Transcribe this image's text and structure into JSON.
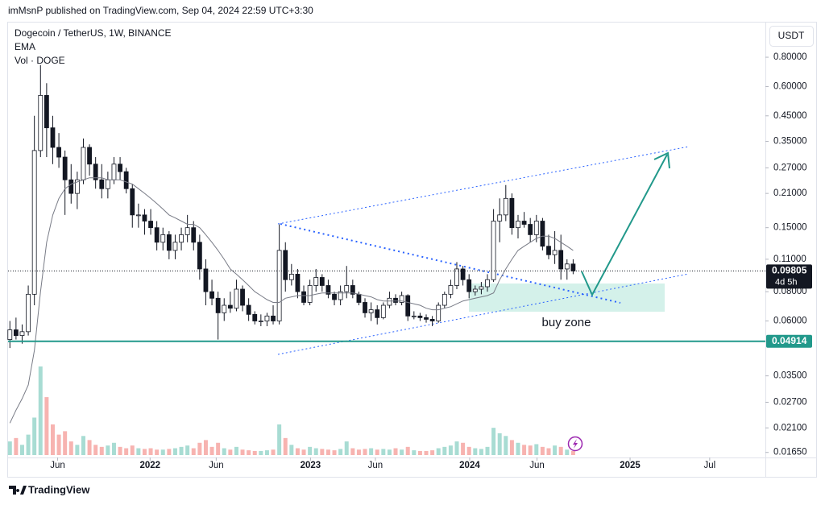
{
  "header": "imMsnP published on TradingView.com, Sep 04, 2024 22:59 UTC+3:30",
  "footer": "TradingView",
  "chart_data": {
    "type": "candlestick",
    "title": "Dogecoin / TetherUS, 1W, BINANCE",
    "currency": "USDT",
    "log_scale": true,
    "grid": false,
    "up_color": "#ffffff",
    "down_color": "#131722",
    "candles": [
      [
        0.05,
        0.06,
        0.046,
        0.055
      ],
      [
        0.055,
        0.062,
        0.05,
        0.052
      ],
      [
        0.052,
        0.058,
        0.048,
        0.054
      ],
      [
        0.054,
        0.085,
        0.052,
        0.078
      ],
      [
        0.078,
        0.45,
        0.07,
        0.32
      ],
      [
        0.32,
        0.74,
        0.3,
        0.55
      ],
      [
        0.55,
        0.62,
        0.3,
        0.4
      ],
      [
        0.4,
        0.45,
        0.28,
        0.33
      ],
      [
        0.33,
        0.38,
        0.27,
        0.3
      ],
      [
        0.3,
        0.32,
        0.17,
        0.24
      ],
      [
        0.24,
        0.28,
        0.19,
        0.21
      ],
      [
        0.21,
        0.26,
        0.18,
        0.24
      ],
      [
        0.24,
        0.36,
        0.23,
        0.33
      ],
      [
        0.33,
        0.34,
        0.25,
        0.28
      ],
      [
        0.28,
        0.3,
        0.22,
        0.24
      ],
      [
        0.24,
        0.28,
        0.2,
        0.22
      ],
      [
        0.22,
        0.26,
        0.2,
        0.24
      ],
      [
        0.24,
        0.3,
        0.23,
        0.28
      ],
      [
        0.28,
        0.3,
        0.24,
        0.26
      ],
      [
        0.26,
        0.27,
        0.21,
        0.22
      ],
      [
        0.22,
        0.23,
        0.15,
        0.17
      ],
      [
        0.17,
        0.19,
        0.15,
        0.17
      ],
      [
        0.17,
        0.18,
        0.14,
        0.16
      ],
      [
        0.16,
        0.18,
        0.14,
        0.15
      ],
      [
        0.15,
        0.16,
        0.12,
        0.13
      ],
      [
        0.13,
        0.15,
        0.12,
        0.14
      ],
      [
        0.14,
        0.145,
        0.11,
        0.12
      ],
      [
        0.12,
        0.14,
        0.11,
        0.13
      ],
      [
        0.13,
        0.15,
        0.12,
        0.14
      ],
      [
        0.14,
        0.17,
        0.13,
        0.15
      ],
      [
        0.15,
        0.16,
        0.12,
        0.13
      ],
      [
        0.13,
        0.14,
        0.09,
        0.1
      ],
      [
        0.1,
        0.11,
        0.07,
        0.08
      ],
      [
        0.08,
        0.09,
        0.07,
        0.075
      ],
      [
        0.075,
        0.08,
        0.05,
        0.065
      ],
      [
        0.065,
        0.075,
        0.06,
        0.07
      ],
      [
        0.07,
        0.08,
        0.065,
        0.068
      ],
      [
        0.068,
        0.09,
        0.066,
        0.082
      ],
      [
        0.082,
        0.085,
        0.066,
        0.07
      ],
      [
        0.07,
        0.075,
        0.06,
        0.064
      ],
      [
        0.064,
        0.066,
        0.058,
        0.06
      ],
      [
        0.06,
        0.064,
        0.057,
        0.06
      ],
      [
        0.06,
        0.065,
        0.057,
        0.063
      ],
      [
        0.063,
        0.07,
        0.058,
        0.06
      ],
      [
        0.06,
        0.155,
        0.058,
        0.12
      ],
      [
        0.12,
        0.13,
        0.08,
        0.09
      ],
      [
        0.09,
        0.105,
        0.085,
        0.095
      ],
      [
        0.095,
        0.1,
        0.075,
        0.08
      ],
      [
        0.08,
        0.085,
        0.07,
        0.072
      ],
      [
        0.072,
        0.09,
        0.07,
        0.085
      ],
      [
        0.085,
        0.1,
        0.08,
        0.092
      ],
      [
        0.092,
        0.095,
        0.08,
        0.085
      ],
      [
        0.085,
        0.09,
        0.075,
        0.078
      ],
      [
        0.078,
        0.08,
        0.07,
        0.074
      ],
      [
        0.074,
        0.085,
        0.07,
        0.08
      ],
      [
        0.08,
        0.103,
        0.075,
        0.085
      ],
      [
        0.085,
        0.09,
        0.075,
        0.078
      ],
      [
        0.078,
        0.08,
        0.07,
        0.072
      ],
      [
        0.072,
        0.075,
        0.062,
        0.065
      ],
      [
        0.065,
        0.072,
        0.06,
        0.067
      ],
      [
        0.067,
        0.07,
        0.058,
        0.062
      ],
      [
        0.062,
        0.072,
        0.061,
        0.07
      ],
      [
        0.07,
        0.08,
        0.068,
        0.075
      ],
      [
        0.075,
        0.078,
        0.07,
        0.072
      ],
      [
        0.072,
        0.08,
        0.07,
        0.077
      ],
      [
        0.077,
        0.078,
        0.06,
        0.063
      ],
      [
        0.063,
        0.066,
        0.061,
        0.063
      ],
      [
        0.063,
        0.065,
        0.06,
        0.062
      ],
      [
        0.062,
        0.064,
        0.059,
        0.061
      ],
      [
        0.061,
        0.063,
        0.057,
        0.06
      ],
      [
        0.06,
        0.072,
        0.059,
        0.07
      ],
      [
        0.07,
        0.08,
        0.068,
        0.078
      ],
      [
        0.078,
        0.09,
        0.075,
        0.085
      ],
      [
        0.085,
        0.107,
        0.082,
        0.1
      ],
      [
        0.1,
        0.103,
        0.085,
        0.09
      ],
      [
        0.09,
        0.095,
        0.075,
        0.08
      ],
      [
        0.08,
        0.085,
        0.077,
        0.082
      ],
      [
        0.082,
        0.088,
        0.078,
        0.084
      ],
      [
        0.084,
        0.095,
        0.08,
        0.09
      ],
      [
        0.09,
        0.18,
        0.088,
        0.16
      ],
      [
        0.16,
        0.2,
        0.13,
        0.17
      ],
      [
        0.17,
        0.228,
        0.16,
        0.2
      ],
      [
        0.2,
        0.21,
        0.14,
        0.15
      ],
      [
        0.15,
        0.17,
        0.135,
        0.16
      ],
      [
        0.16,
        0.175,
        0.15,
        0.155
      ],
      [
        0.155,
        0.165,
        0.13,
        0.14
      ],
      [
        0.14,
        0.17,
        0.13,
        0.16
      ],
      [
        0.16,
        0.165,
        0.12,
        0.125
      ],
      [
        0.125,
        0.14,
        0.11,
        0.115
      ],
      [
        0.115,
        0.145,
        0.105,
        0.12
      ],
      [
        0.12,
        0.14,
        0.09,
        0.1
      ],
      [
        0.1,
        0.11,
        0.09,
        0.105
      ],
      [
        0.105,
        0.11,
        0.095,
        0.09805
      ]
    ],
    "ema": {
      "name": "EMA",
      "color": "#787b86",
      "values": [
        0.022,
        0.025,
        0.028,
        0.032,
        0.045,
        0.08,
        0.13,
        0.17,
        0.2,
        0.22,
        0.23,
        0.235,
        0.24,
        0.245,
        0.245,
        0.245,
        0.24,
        0.24,
        0.24,
        0.235,
        0.23,
        0.22,
        0.21,
        0.2,
        0.19,
        0.18,
        0.17,
        0.165,
        0.16,
        0.155,
        0.155,
        0.15,
        0.14,
        0.13,
        0.12,
        0.11,
        0.1,
        0.095,
        0.09,
        0.085,
        0.08,
        0.077,
        0.074,
        0.072,
        0.072,
        0.075,
        0.076,
        0.077,
        0.077,
        0.077,
        0.078,
        0.079,
        0.079,
        0.079,
        0.079,
        0.079,
        0.079,
        0.078,
        0.077,
        0.076,
        0.074,
        0.073,
        0.073,
        0.073,
        0.073,
        0.072,
        0.071,
        0.07,
        0.068,
        0.067,
        0.067,
        0.068,
        0.069,
        0.071,
        0.073,
        0.074,
        0.075,
        0.076,
        0.077,
        0.079,
        0.09,
        0.1,
        0.11,
        0.12,
        0.125,
        0.13,
        0.135,
        0.138,
        0.138,
        0.135,
        0.13,
        0.125,
        0.12
      ]
    },
    "volume": {
      "name": "Vol · DOGE",
      "up_color": "#a8dcd3",
      "down_color": "#f7b3b0",
      "values": [
        20,
        25,
        15,
        30,
        55,
        130,
        85,
        45,
        30,
        35,
        20,
        15,
        28,
        22,
        15,
        12,
        14,
        18,
        12,
        10,
        14,
        10,
        9,
        10,
        8,
        8,
        9,
        10,
        12,
        14,
        10,
        18,
        22,
        12,
        18,
        10,
        8,
        12,
        8,
        7,
        6,
        6,
        7,
        8,
        45,
        25,
        15,
        10,
        8,
        12,
        10,
        9,
        8,
        7,
        9,
        20,
        10,
        8,
        9,
        10,
        8,
        9,
        8,
        10,
        8,
        12,
        7,
        6,
        6,
        7,
        10,
        12,
        14,
        20,
        18,
        12,
        10,
        9,
        12,
        40,
        32,
        28,
        22,
        18,
        15,
        14,
        16,
        12,
        10,
        14,
        12,
        8,
        6
      ]
    },
    "ylim": [
      0.0157,
      1.107
    ],
    "yticks": [
      {
        "value": 0.8,
        "label": "0.80000"
      },
      {
        "value": 0.6,
        "label": "0.60000"
      },
      {
        "value": 0.45,
        "label": "0.45000"
      },
      {
        "value": 0.35,
        "label": "0.35000"
      },
      {
        "value": 0.27,
        "label": "0.27000"
      },
      {
        "value": 0.21,
        "label": "0.21000"
      },
      {
        "value": 0.15,
        "label": "0.15000"
      },
      {
        "value": 0.11,
        "label": "0.11000"
      },
      {
        "value": 0.08,
        "label": "0.08000"
      },
      {
        "value": 0.06,
        "label": "0.06000"
      },
      {
        "value": 0.035,
        "label": "0.03500"
      },
      {
        "value": 0.027,
        "label": "0.02700"
      },
      {
        "value": 0.021,
        "label": "0.02100"
      },
      {
        "value": 0.0165,
        "label": "0.01650"
      }
    ],
    "xlim": [
      -0.3,
      123.4
    ],
    "xticks": [
      {
        "value": 7.8,
        "label": "Jun"
      },
      {
        "value": 22.9,
        "label": "2022"
      },
      {
        "value": 33.7,
        "label": "Jun"
      },
      {
        "value": 49.1,
        "label": "2023"
      },
      {
        "value": 59.7,
        "label": "Jun"
      },
      {
        "value": 75.1,
        "label": "2024"
      },
      {
        "value": 86.1,
        "label": "Jun"
      },
      {
        "value": 101.3,
        "label": "2025"
      },
      {
        "value": 114.3,
        "label": "Jul"
      }
    ],
    "last_price": {
      "value": 0.09805,
      "countdown": "4d 5h",
      "color": "#131722"
    },
    "hline": {
      "value": 0.04914,
      "color": "#22998b"
    },
    "annotation": "buy zone"
  }
}
